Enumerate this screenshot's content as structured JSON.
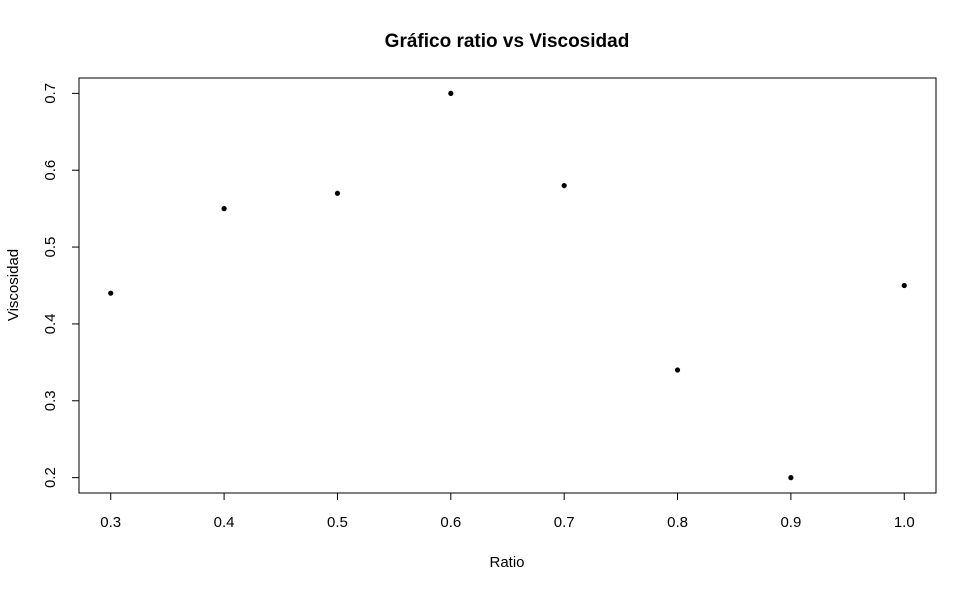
{
  "chart_data": {
    "type": "scatter",
    "title": "Gráfico ratio vs Viscosidad",
    "xlabel": "Ratio",
    "ylabel": "Viscosidad",
    "x": [
      0.3,
      0.4,
      0.5,
      0.6,
      0.7,
      0.8,
      0.9,
      1.0
    ],
    "y": [
      0.44,
      0.55,
      0.57,
      0.7,
      0.58,
      0.34,
      0.2,
      0.45
    ],
    "xlim": [
      0.272,
      1.028
    ],
    "ylim": [
      0.18,
      0.72
    ],
    "x_ticks": [
      0.3,
      0.4,
      0.5,
      0.6,
      0.7,
      0.8,
      0.9,
      1.0
    ],
    "x_tick_labels": [
      "0.3",
      "0.4",
      "0.5",
      "0.6",
      "0.7",
      "0.8",
      "0.9",
      "1.0"
    ],
    "y_ticks": [
      0.2,
      0.3,
      0.4,
      0.5,
      0.6,
      0.7
    ],
    "y_tick_labels": [
      "0.2",
      "0.3",
      "0.4",
      "0.5",
      "0.6",
      "0.7"
    ],
    "grid": false,
    "legend": "none",
    "colors": {
      "points": "#000000",
      "axes": "#000000",
      "background": "#ffffff"
    }
  }
}
